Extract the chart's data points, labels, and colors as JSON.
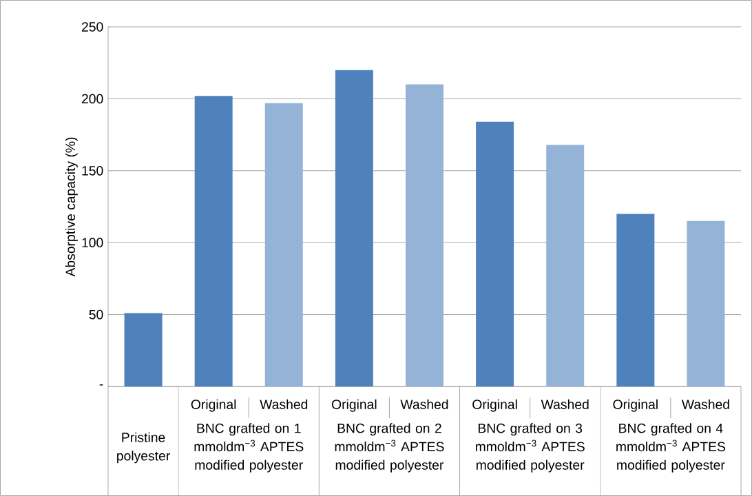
{
  "chart_data": {
    "type": "bar",
    "ylabel": "Absorptive capacity (%)",
    "categories": [
      null,
      "Original",
      "Washed",
      "Original",
      "Washed",
      "Original",
      "Washed",
      "Original",
      "Washed"
    ],
    "values": [
      51,
      202,
      197,
      220,
      210,
      184,
      168,
      120,
      115
    ],
    "colors": [
      "#4f81bd",
      "#4f81bd",
      "#95b3d7",
      "#4f81bd",
      "#95b3d7",
      "#4f81bd",
      "#95b3d7",
      "#4f81bd",
      "#95b3d7"
    ],
    "ylim": [
      0,
      250
    ],
    "yticks": [
      {
        "value": 0,
        "label": "-"
      },
      50,
      100,
      150,
      200,
      250
    ],
    "grid": "y",
    "annotations": [
      "Pristine polyester",
      "BNC grafted on 1 mmoldm$^{−3}$ APTES modified polyester",
      "BNC grafted on 2 mmoldm$^{−3}$ APTES modified polyester",
      "BNC grafted on 3 mmoldm$^{−3}$ APTES modified polyester",
      "BNC grafted on 4 mmoldm$^{−3}$ APTES modified polyester"
    ]
  }
}
